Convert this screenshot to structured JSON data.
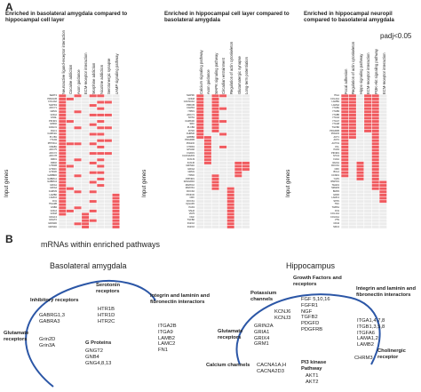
{
  "panel_a": {
    "letter": "A",
    "padj": "padj<0.05",
    "axis_label": "Input genes",
    "heatmaps": [
      {
        "title": "Enriched in basolateral amygdala compared to hippocampal cell layer",
        "columns": [
          "Neuroactive ligand-receptor interaction",
          "Cocaine addiction",
          "Axon guidance",
          "ECM-receptor interaction",
          "Morphine addiction",
          "Nicotine addiction",
          "Serotonergic synapse",
          "cAMP signaling pathway"
        ],
        "rows": [
          "SERT4",
          "PRKACB",
          "COL4A2",
          "MAPK3",
          "ADCY1",
          "GRM1",
          "GNG2",
          "GNAL",
          "PIK3R1",
          "GRID2",
          "GNAO1",
          "RAC1",
          "CAMK2A",
          "PLCB1",
          "ITGA9",
          "PPP3CA",
          "CREB1",
          "ADCY5",
          "ADCY2",
          "ADCY8",
          "DRD1",
          "DRD2",
          "HTR1B",
          "HTR2C",
          "HTR1D",
          "GABBR2",
          "GABRG1",
          "GABRG3",
          "GRIA1",
          "GRIA4",
          "CHRM3",
          "LAMB2",
          "LAMC2",
          "FN1",
          "ITGA2B",
          "GNB4",
          "GNG4",
          "GNG8",
          "GNG13",
          "GNGT2",
          "GRIN2D",
          "GRIN3A"
        ]
      },
      {
        "title": "Enriched in hippocampal cell layer compared to basolateral amygdala",
        "columns": [
          "Calcium signaling pathway",
          "Axon guidance",
          "MAPK signaling pathway",
          "Circadian entrainment",
          "Regulation of actin cytoskeleton",
          "Glutamatergic synapse",
          "Long-term potentiation"
        ],
        "rows": [
          "MAP3K",
          "GNG8",
          "CACNA1A",
          "PRKCB",
          "CAMK4",
          "ITPR1",
          "ADCY1",
          "NOS1",
          "CAMK2D",
          "SRC",
          "PLCB4",
          "RYR2",
          "CHRM2",
          "ERBB4",
          "PDGFRB",
          "PDGFD",
          "NTRK3",
          "EPHA6",
          "FGFR1",
          "CACNA2D3",
          "KCNJ3",
          "KCNJ6",
          "GRIN2A",
          "GRIA4",
          "GRM1",
          "ITPR2",
          "PPP3R1",
          "RASGRF2",
          "MAPK10",
          "MAP2K1",
          "ROCK2",
          "PIK3CD",
          "CRK",
          "DOCK1",
          "IQGAP2",
          "PAK3",
          "SSH2",
          "VAV3",
          "NGF",
          "TGFB2",
          "FGF10",
          "FGF16"
        ]
      },
      {
        "title": "Enriched in hippocampal neuropil compared to basolateral amygdala",
        "columns": [
          "Focal adhesion",
          "Regulation of actin cytoskeleton",
          "Hippo signaling pathway",
          "ECM-receptor interaction",
          "PI3K-Akt signaling pathway",
          "ECM-receptor interaction"
        ],
        "rows": [
          "ITGA",
          "COL4A1",
          "LAMB1",
          "LAMA2",
          "ITGB1",
          "ITGB3",
          "ITGB5",
          "ITGA4",
          "ITGA7",
          "ITGA8",
          "TGFB2",
          "PDGFRB",
          "PDGFD",
          "AKT1",
          "AKT2",
          "ACTN1",
          "VCL",
          "PAK3",
          "PIK3R1",
          "MYL9",
          "FLNA",
          "RHOA",
          "ROCK1",
          "CRK",
          "BCL2",
          "CCND1",
          "YAP1",
          "WWTR1",
          "TEAD1",
          "SMAD3",
          "BMP4",
          "GDF6",
          "LAMC1",
          "SPP1",
          "TNC",
          "THBS1",
          "FN1",
          "COL1A1",
          "COL6A1",
          "VTN",
          "CD44",
          "SDC4"
        ]
      }
    ]
  },
  "panel_b": {
    "letter": "B",
    "title": "mRNAs within enriched pathways",
    "sections": [
      {
        "heading": "Basolateral amygdala",
        "pathways": [
          "Inhibitory receptors",
          "Serotonin receptors",
          "Integrin and laminin and fibronectin interactors",
          "Glutamate receptors",
          "G Proteins"
        ],
        "genes": [
          "GABRG1,3\nGABRA3",
          "HTR1B\nHTR1D\nHTR2C",
          "ITGA2B\nITGA9\nLAMB2\nLAMC2\nFN1",
          "Grin2D\nGrin3A",
          "GNGT2\nGNB4\nGNG4,8,13"
        ]
      },
      {
        "heading": "Hippocampus",
        "pathways": [
          "Potassium channels",
          "Growth Factors and receptors",
          "Integrin and laminin and fibronectin interactors",
          "Glutamate receptors",
          "Calcium channels",
          "PI3 kinase Pathway",
          "Cholinergic receptor"
        ],
        "genes": [
          "KCNJ6\nKCNJ3",
          "FGF 5,10,16\nFGFR1\nNGF\nTGFB2\nPDGFD\nPDGFRB",
          "ITGA1,4,7,8\nITGB1,3,5,8\nITGFA6\nLAMA1,2\nLAMB2",
          "GRIN2A\nGRIA1\nGRIX4\nGRM1",
          "CACNA1A,H\nCACNA2D3",
          "AKT1\nAKT2",
          "CHRM3"
        ]
      }
    ]
  },
  "colors": {
    "cell_on": "#f05a5f",
    "cell_off": "#ececec",
    "arc": "#2b56a6"
  }
}
